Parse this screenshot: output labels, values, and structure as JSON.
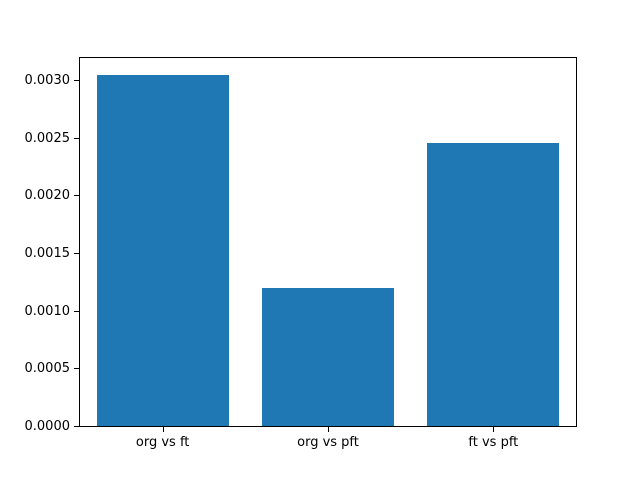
{
  "figure": {
    "background": "#ffffff",
    "axis_color": "#000000",
    "text_color": "#000000"
  },
  "chart_data": {
    "type": "bar",
    "title": "",
    "xlabel": "",
    "ylabel": "",
    "categories": [
      "org vs ft",
      "org vs pft",
      "ft vs pft"
    ],
    "values": [
      0.00304,
      0.0012,
      0.00245
    ],
    "bar_color": "#1f77b4",
    "bar_width_fraction": 0.8,
    "ylim": [
      0,
      0.00319
    ],
    "yticks": [
      0.0,
      0.0005,
      0.001,
      0.0015,
      0.002,
      0.0025,
      0.003
    ],
    "ytick_decimals": 4,
    "grid": false,
    "legend": null
  }
}
